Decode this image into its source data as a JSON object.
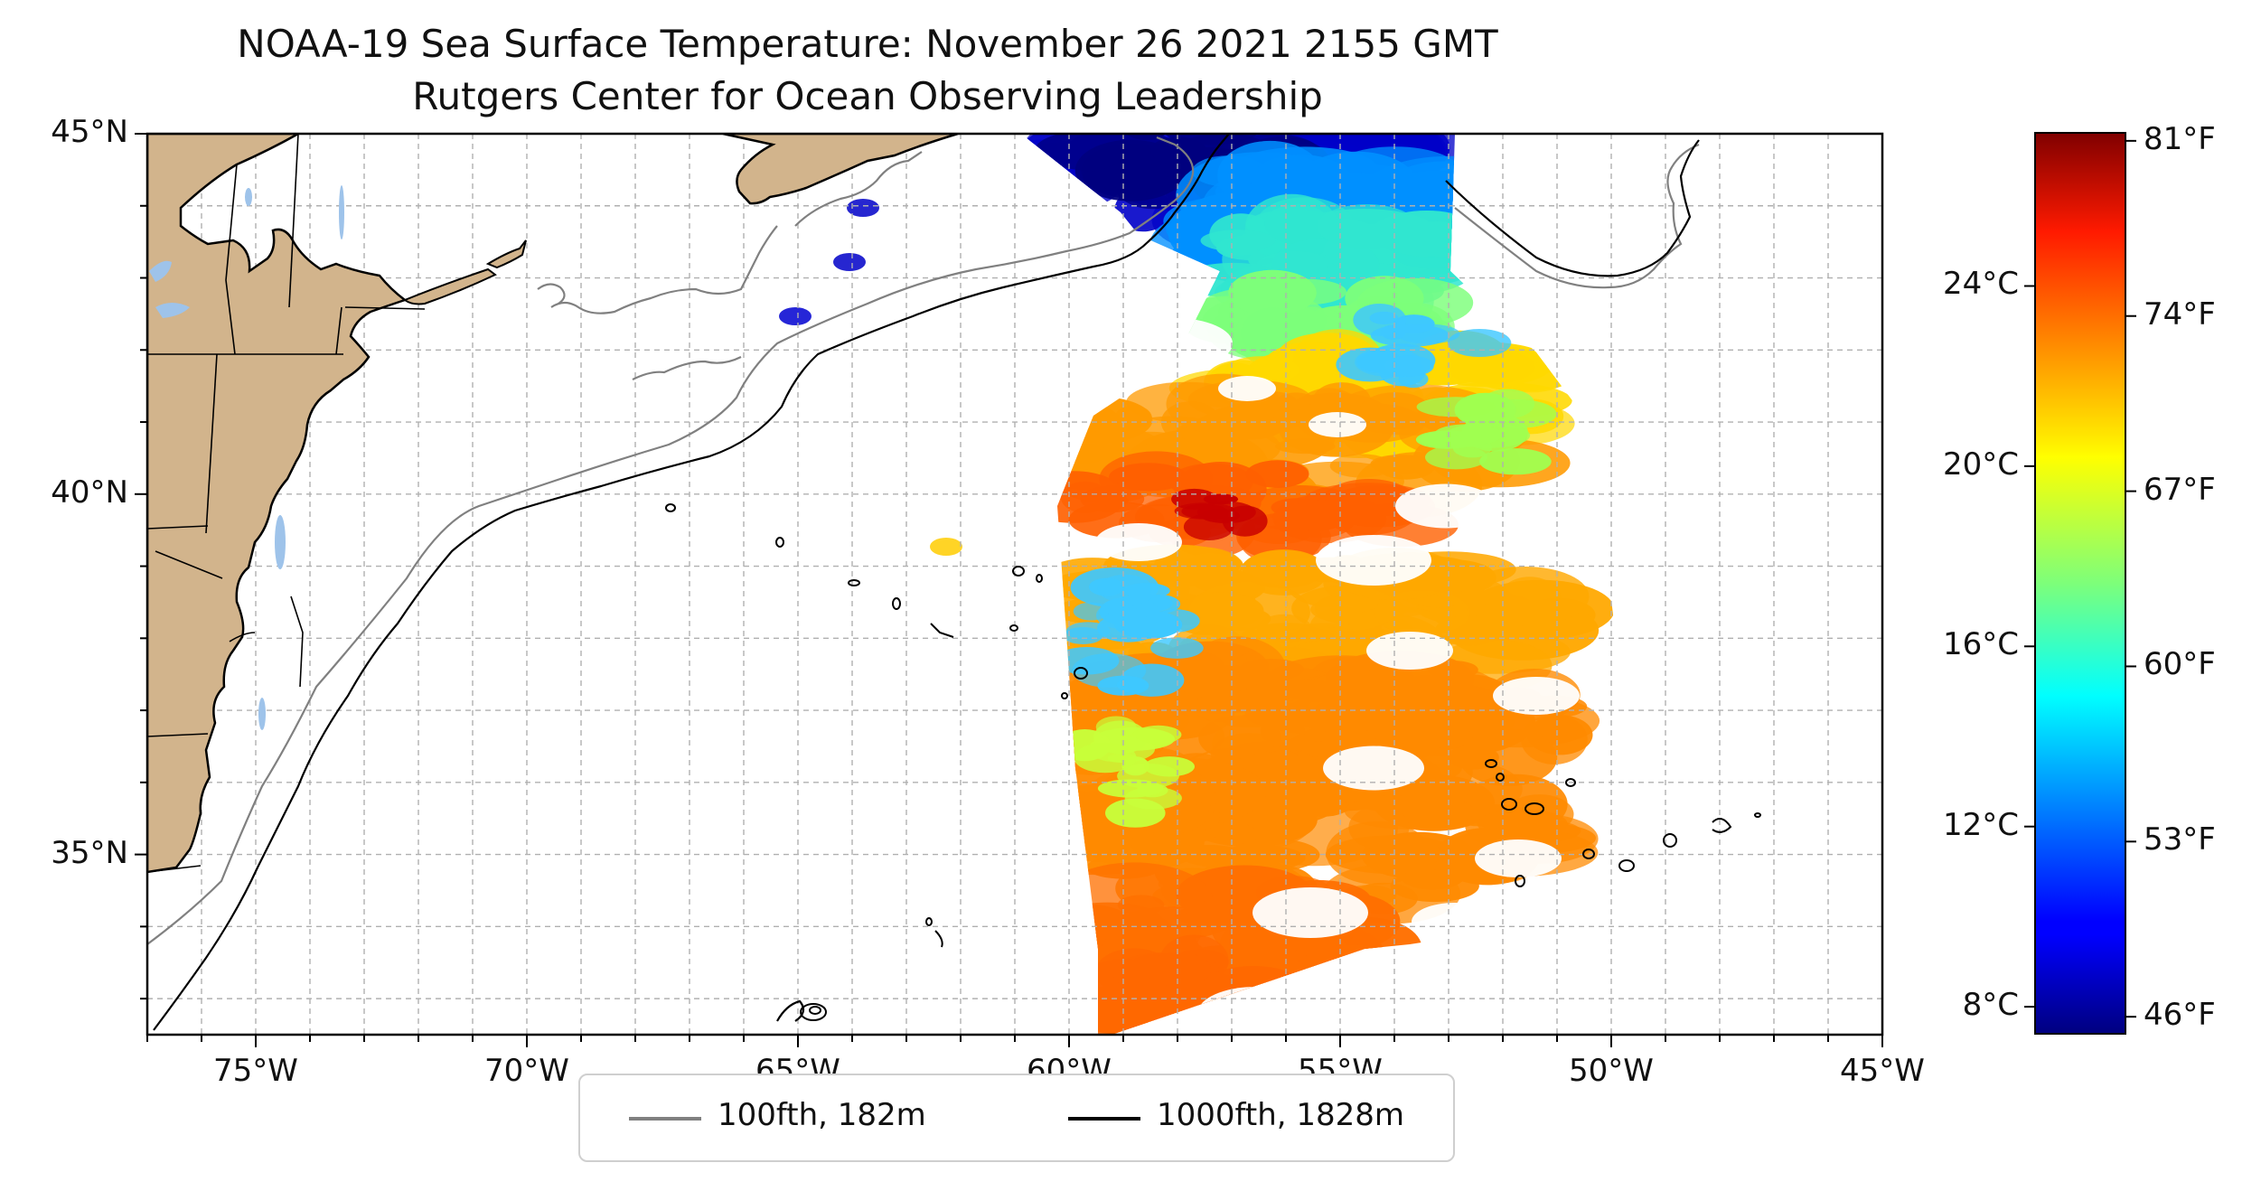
{
  "title": {
    "line1": "NOAA-19 Sea Surface Temperature: November 26 2021 2155 GMT",
    "line2": "Rutgers Center for Ocean Observing Leadership"
  },
  "map": {
    "lon_range": [
      -77,
      -45
    ],
    "lat_range": [
      32.5,
      45
    ],
    "x_ticks": [
      "75°W",
      "70°W",
      "65°W",
      "60°W",
      "55°W",
      "50°W",
      "45°W"
    ],
    "x_tick_values": [
      -75,
      -70,
      -65,
      -60,
      -55,
      -50,
      -45
    ],
    "y_ticks": [
      "45°N",
      "40°N",
      "35°N"
    ],
    "y_tick_values": [
      45,
      40,
      35
    ],
    "gridlines": true,
    "land_color": "#d2b48c",
    "lake_color": "#9ec3ea"
  },
  "legend": {
    "placement": "bottom-center",
    "items": [
      {
        "label": "100fth, 182m",
        "color": "#808080"
      },
      {
        "label": "1000fth, 1828m",
        "color": "#000000"
      }
    ]
  },
  "colorbar": {
    "colormap": "jet",
    "celsius_range": [
      7.4,
      27.4
    ],
    "celsius_ticks": [
      "24°C",
      "20°C",
      "16°C",
      "12°C",
      "8°C"
    ],
    "celsius_tick_values": [
      24,
      20,
      16,
      12,
      8
    ],
    "fahrenheit_ticks": [
      "81°F",
      "74°F",
      "67°F",
      "60°F",
      "53°F",
      "46°F"
    ],
    "fahrenheit_tick_values": [
      81,
      74,
      67,
      60,
      53,
      46
    ]
  }
}
